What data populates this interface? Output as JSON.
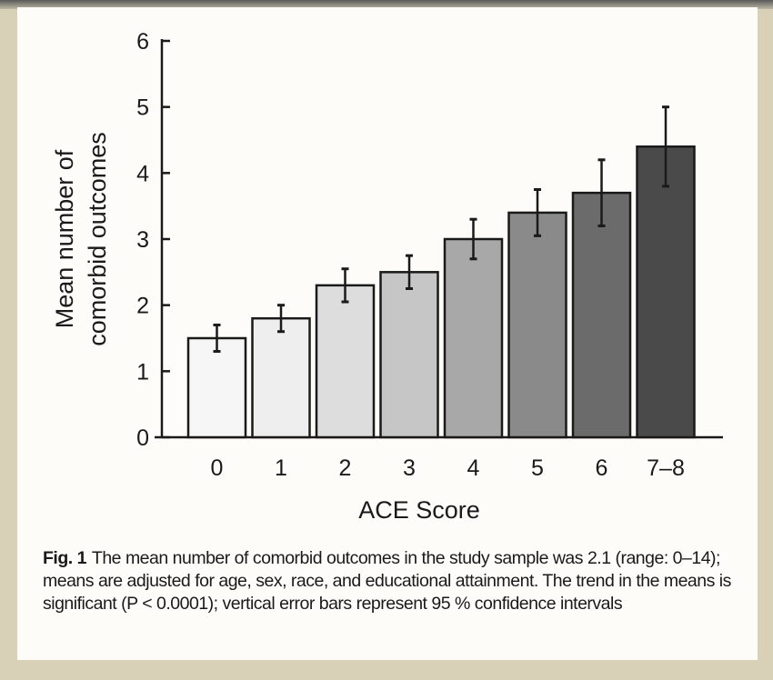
{
  "chart_data": {
    "type": "bar",
    "categories": [
      "0",
      "1",
      "2",
      "3",
      "4",
      "5",
      "6",
      "7–8"
    ],
    "values": [
      1.5,
      1.8,
      2.3,
      2.5,
      3.0,
      3.4,
      3.7,
      4.4
    ],
    "error_low": [
      1.3,
      1.6,
      2.05,
      2.25,
      2.7,
      3.05,
      3.2,
      3.8
    ],
    "error_high": [
      1.7,
      2.0,
      2.55,
      2.75,
      3.3,
      3.75,
      4.2,
      5.0
    ],
    "bar_colors": [
      "#f6f6f6",
      "#eeeeee",
      "#dddddd",
      "#c6c6c6",
      "#a8a8a8",
      "#8a8a8a",
      "#6b6b6b",
      "#4a4a4a"
    ],
    "xlabel": "ACE Score",
    "ylabel_lines": [
      "Mean number of",
      "comorbid outcomes"
    ],
    "ylim": [
      0,
      6
    ],
    "yticks": [
      "0",
      "1",
      "2",
      "3",
      "4",
      "5",
      "6"
    ],
    "grid": false,
    "legend": "none"
  },
  "caption": {
    "label": "Fig. 1",
    "text": "The mean number of comorbid outcomes in the study sample was 2.1 (range: 0–14); means are adjusted for age, sex, race, and educational attainment. The trend in the means is significant (P < 0.0001); vertical error bars represent 95 % confidence intervals"
  }
}
